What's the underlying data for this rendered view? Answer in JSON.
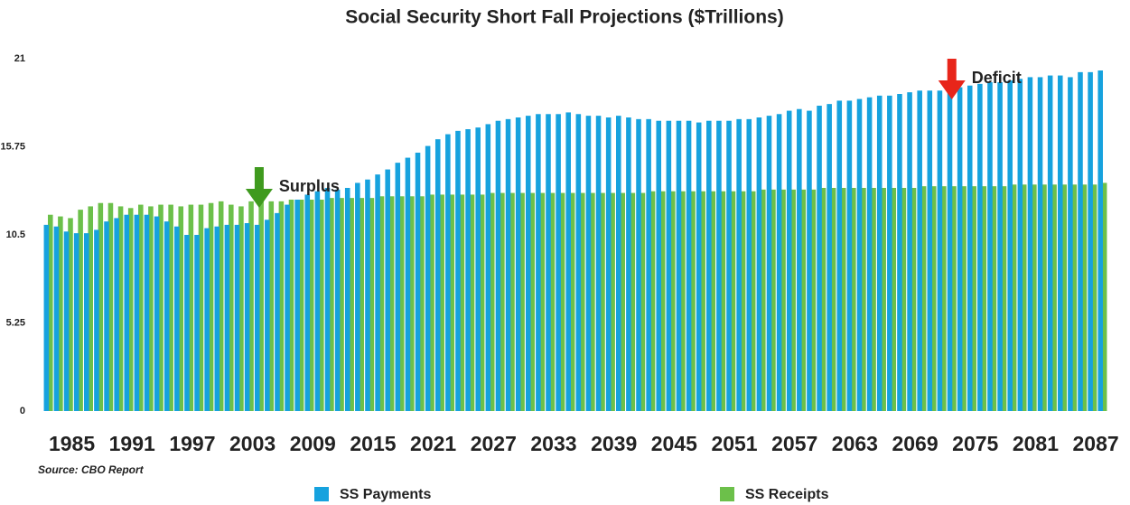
{
  "chart_data": {
    "type": "bar",
    "title": "Social Security Short Fall Projections ($Trillions)",
    "source": "Source: CBO Report",
    "categories": [
      "1985",
      null,
      null,
      null,
      null,
      null,
      "1991",
      null,
      null,
      null,
      null,
      null,
      "1997",
      null,
      null,
      null,
      null,
      null,
      "2003",
      null,
      null,
      null,
      null,
      null,
      "2009",
      null,
      null,
      null,
      null,
      null,
      "2015",
      null,
      null,
      null,
      null,
      null,
      "2021",
      null,
      null,
      null,
      null,
      null,
      "2027",
      null,
      null,
      null,
      null,
      null,
      "2033",
      null,
      null,
      null,
      null,
      null,
      "2039",
      null,
      null,
      null,
      null,
      null,
      "2045",
      null,
      null,
      null,
      null,
      null,
      "2051",
      null,
      null,
      null,
      null,
      null,
      "2057",
      null,
      null,
      null,
      null,
      null,
      "2063",
      null,
      null,
      null,
      null,
      null,
      "2069",
      null,
      null,
      null,
      null,
      null,
      "2075",
      null,
      null,
      null,
      null,
      null,
      "2081",
      null,
      null,
      null,
      null,
      null,
      "2087",
      null,
      null,
      null
    ],
    "series": [
      {
        "name": "SS Payments",
        "color": "#16a2de",
        "values": [
          11.1,
          11.0,
          10.7,
          10.6,
          10.6,
          10.8,
          11.3,
          11.5,
          11.7,
          11.7,
          11.7,
          11.6,
          11.3,
          11.0,
          10.5,
          10.5,
          10.9,
          11.0,
          11.1,
          11.1,
          11.2,
          11.1,
          11.4,
          11.8,
          12.3,
          12.6,
          12.9,
          13.1,
          13.3,
          13.2,
          13.3,
          13.6,
          13.8,
          14.1,
          14.4,
          14.8,
          15.1,
          15.4,
          15.8,
          16.2,
          16.5,
          16.7,
          16.8,
          16.9,
          17.1,
          17.3,
          17.4,
          17.5,
          17.6,
          17.7,
          17.7,
          17.7,
          17.8,
          17.7,
          17.6,
          17.6,
          17.5,
          17.6,
          17.5,
          17.4,
          17.4,
          17.3,
          17.3,
          17.3,
          17.3,
          17.2,
          17.3,
          17.3,
          17.3,
          17.4,
          17.4,
          17.5,
          17.6,
          17.7,
          17.9,
          18.0,
          17.9,
          18.2,
          18.3,
          18.5,
          18.5,
          18.6,
          18.7,
          18.8,
          18.8,
          18.9,
          19.0,
          19.1,
          19.1,
          19.1,
          19.2,
          19.3,
          19.4,
          19.5,
          19.6,
          19.6,
          19.7,
          19.8,
          19.9,
          19.9,
          20.0,
          20.0,
          19.9,
          20.2,
          20.2,
          20.3
        ]
      },
      {
        "name": "SS Receipts",
        "color": "#6cc04a",
        "values": [
          11.7,
          11.6,
          11.5,
          12.0,
          12.2,
          12.4,
          12.4,
          12.2,
          12.1,
          12.3,
          12.2,
          12.3,
          12.3,
          12.2,
          12.3,
          12.3,
          12.4,
          12.5,
          12.3,
          12.2,
          12.5,
          12.6,
          12.5,
          12.5,
          12.6,
          12.6,
          12.6,
          12.6,
          12.7,
          12.7,
          12.7,
          12.7,
          12.7,
          12.8,
          12.8,
          12.8,
          12.8,
          12.8,
          12.9,
          12.9,
          12.9,
          12.9,
          12.9,
          12.9,
          13.0,
          13.0,
          13.0,
          13.0,
          13.0,
          13.0,
          13.0,
          13.0,
          13.0,
          13.0,
          13.0,
          13.0,
          13.0,
          13.0,
          13.0,
          13.0,
          13.1,
          13.1,
          13.1,
          13.1,
          13.1,
          13.1,
          13.1,
          13.1,
          13.1,
          13.1,
          13.1,
          13.2,
          13.2,
          13.2,
          13.2,
          13.2,
          13.2,
          13.3,
          13.3,
          13.3,
          13.3,
          13.3,
          13.3,
          13.3,
          13.3,
          13.3,
          13.3,
          13.4,
          13.4,
          13.4,
          13.4,
          13.4,
          13.4,
          13.4,
          13.4,
          13.4,
          13.5,
          13.5,
          13.5,
          13.5,
          13.5,
          13.5,
          13.5,
          13.5,
          13.5,
          13.6
        ]
      }
    ],
    "annotations": [
      "Surplus",
      "Deficit"
    ],
    "ylim": [
      0,
      21
    ],
    "yticks": [
      0,
      5.25,
      10.5,
      15.75,
      21
    ],
    "grid": false,
    "legend": "bottom"
  }
}
